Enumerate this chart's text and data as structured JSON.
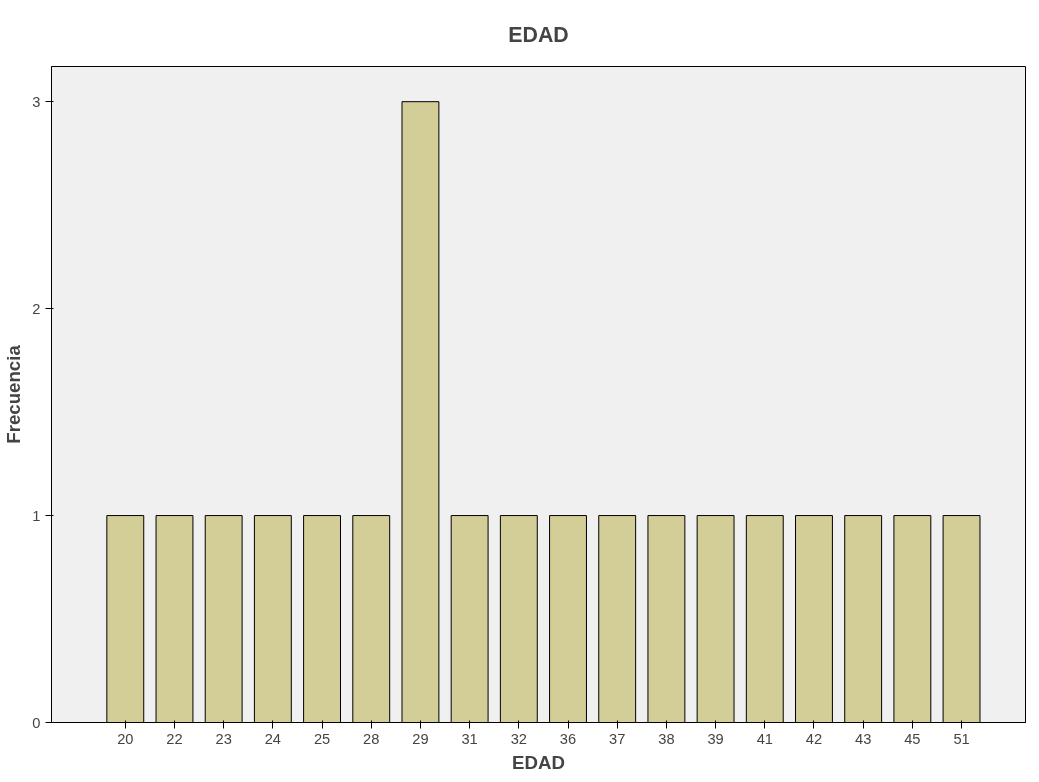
{
  "chart_data": {
    "type": "bar",
    "title": "EDAD",
    "xlabel": "EDAD",
    "ylabel": "Frecuencia",
    "categories": [
      "20",
      "22",
      "23",
      "24",
      "25",
      "28",
      "29",
      "31",
      "32",
      "36",
      "37",
      "38",
      "39",
      "41",
      "42",
      "43",
      "45",
      "51"
    ],
    "values": [
      1,
      1,
      1,
      1,
      1,
      1,
      3,
      1,
      1,
      1,
      1,
      1,
      1,
      1,
      1,
      1,
      1,
      1
    ],
    "color": "#d3ce97",
    "ylim": [
      0,
      3.17
    ],
    "yticks": [
      0,
      1,
      2,
      3
    ],
    "grid": false
  }
}
